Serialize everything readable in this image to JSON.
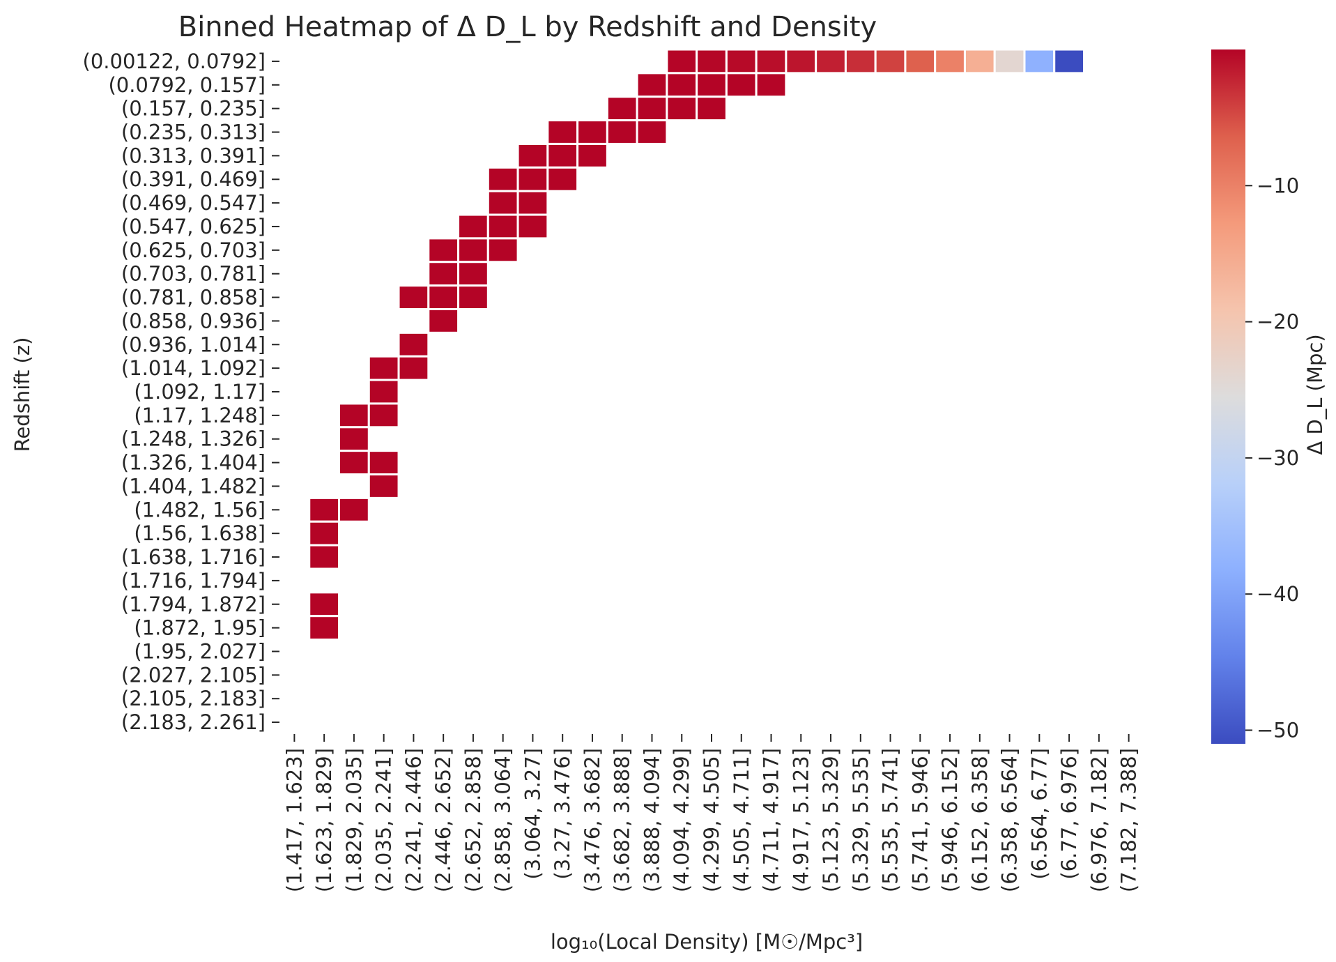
{
  "chart_data": {
    "type": "heatmap",
    "title": "Binned Heatmap of Δ D_L by Redshift and Density",
    "xlabel": "log₁₀(Local Density) [M☉/Mpc³]",
    "ylabel": "Redshift (z)",
    "colorbar_label": "Δ D_L (Mpc)",
    "colormap": "coolwarm",
    "vmin": -51,
    "vmax": 0,
    "colorbar_ticks": [
      -10,
      -20,
      -30,
      -40,
      -50
    ],
    "colorbar_tick_labels": [
      "−10",
      "−20",
      "−30",
      "−40",
      "−50"
    ],
    "grid": false,
    "x_categories": [
      "(1.417, 1.623]",
      "(1.623, 1.829]",
      "(1.829, 2.035]",
      "(2.035, 2.241]",
      "(2.241, 2.446]",
      "(2.446, 2.652]",
      "(2.652, 2.858]",
      "(2.858, 3.064]",
      "(3.064, 3.27]",
      "(3.27, 3.476]",
      "(3.476, 3.682]",
      "(3.682, 3.888]",
      "(3.888, 4.094]",
      "(4.094, 4.299]",
      "(4.299, 4.505]",
      "(4.505, 4.711]",
      "(4.711, 4.917]",
      "(4.917, 5.123]",
      "(5.123, 5.329]",
      "(5.329, 5.535]",
      "(5.535, 5.741]",
      "(5.741, 5.946]",
      "(5.946, 6.152]",
      "(6.152, 6.358]",
      "(6.358, 6.564]",
      "(6.564, 6.77]",
      "(6.77, 6.976]",
      "(6.976, 7.182]",
      "(7.182, 7.388]"
    ],
    "y_categories": [
      "(0.00122, 0.0792]",
      "(0.0792, 0.157]",
      "(0.157, 0.235]",
      "(0.235, 0.313]",
      "(0.313, 0.391]",
      "(0.391, 0.469]",
      "(0.469, 0.547]",
      "(0.547, 0.625]",
      "(0.625, 0.703]",
      "(0.703, 0.781]",
      "(0.781, 0.858]",
      "(0.858, 0.936]",
      "(0.936, 1.014]",
      "(1.014, 1.092]",
      "(1.092, 1.17]",
      "(1.17, 1.248]",
      "(1.248, 1.326]",
      "(1.326, 1.404]",
      "(1.404, 1.482]",
      "(1.482, 1.56]",
      "(1.56, 1.638]",
      "(1.638, 1.716]",
      "(1.716, 1.794]",
      "(1.794, 1.872]",
      "(1.872, 1.95]",
      "(1.95, 2.027]",
      "(2.027, 2.105]",
      "(2.105, 2.183]",
      "(2.183, 2.261]"
    ],
    "cells": [
      [
        0,
        13,
        -0.1
      ],
      [
        0,
        14,
        -0.2
      ],
      [
        0,
        15,
        -0.4
      ],
      [
        0,
        16,
        -0.7
      ],
      [
        0,
        17,
        -1.2
      ],
      [
        0,
        18,
        -1.9
      ],
      [
        0,
        19,
        -2.9
      ],
      [
        0,
        20,
        -4.3
      ],
      [
        0,
        21,
        -6.5
      ],
      [
        0,
        22,
        -10
      ],
      [
        0,
        23,
        -16
      ],
      [
        0,
        24,
        -24
      ],
      [
        0,
        25,
        -38
      ],
      [
        0,
        26,
        -51
      ],
      [
        1,
        12,
        0
      ],
      [
        1,
        13,
        0
      ],
      [
        1,
        14,
        0
      ],
      [
        1,
        15,
        0
      ],
      [
        1,
        16,
        -0.1
      ],
      [
        2,
        11,
        0
      ],
      [
        2,
        12,
        0
      ],
      [
        2,
        13,
        0
      ],
      [
        2,
        14,
        0
      ],
      [
        3,
        9,
        0
      ],
      [
        3,
        10,
        0
      ],
      [
        3,
        11,
        0
      ],
      [
        3,
        12,
        0
      ],
      [
        4,
        8,
        0
      ],
      [
        4,
        9,
        0
      ],
      [
        4,
        10,
        0
      ],
      [
        5,
        7,
        0
      ],
      [
        5,
        8,
        0
      ],
      [
        5,
        9,
        0
      ],
      [
        6,
        7,
        0
      ],
      [
        6,
        8,
        0
      ],
      [
        7,
        6,
        0
      ],
      [
        7,
        7,
        0
      ],
      [
        7,
        8,
        0
      ],
      [
        8,
        5,
        0
      ],
      [
        8,
        6,
        0
      ],
      [
        8,
        7,
        0
      ],
      [
        9,
        5,
        0
      ],
      [
        9,
        6,
        0
      ],
      [
        10,
        4,
        0
      ],
      [
        10,
        5,
        0
      ],
      [
        10,
        6,
        0
      ],
      [
        11,
        5,
        0
      ],
      [
        12,
        4,
        0
      ],
      [
        13,
        3,
        0
      ],
      [
        13,
        4,
        0
      ],
      [
        14,
        3,
        0
      ],
      [
        15,
        2,
        0
      ],
      [
        15,
        3,
        0
      ],
      [
        16,
        2,
        0
      ],
      [
        17,
        2,
        0
      ],
      [
        17,
        3,
        0
      ],
      [
        18,
        3,
        0
      ],
      [
        19,
        1,
        0
      ],
      [
        19,
        2,
        0
      ],
      [
        20,
        1,
        0
      ],
      [
        21,
        1,
        0
      ],
      [
        23,
        1,
        0
      ],
      [
        24,
        1,
        0
      ]
    ]
  }
}
